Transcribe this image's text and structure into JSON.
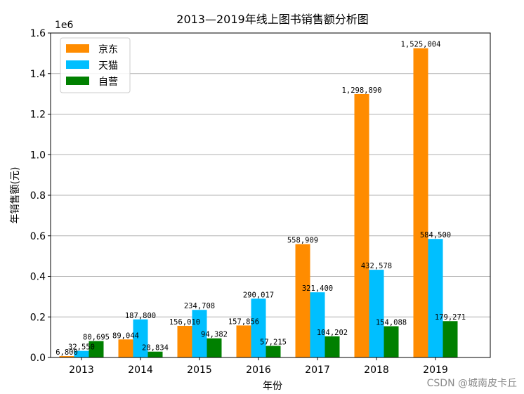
{
  "watermark": "CSDN @城南皮卡丘",
  "chart_data": {
    "type": "bar",
    "title": "2013—2019年线上图书销售额分析图",
    "xlabel": "年份",
    "ylabel": "年销售额(元)",
    "y_scale_label": "1e6",
    "ylim": [
      0,
      1600000
    ],
    "y_ticks": [
      0,
      200000,
      400000,
      600000,
      800000,
      1000000,
      1200000,
      1400000,
      1600000
    ],
    "y_tick_labels": [
      "0.0",
      "0.2",
      "0.4",
      "0.6",
      "0.8",
      "1.0",
      "1.2",
      "1.4",
      "1.6"
    ],
    "grid": "horizontal",
    "legend_position": "top-left",
    "categories": [
      "2013",
      "2014",
      "2015",
      "2016",
      "2017",
      "2018",
      "2019"
    ],
    "series": [
      {
        "name": "京东",
        "color": "#ff8c00",
        "values": [
          6800,
          89044,
          156010,
          157856,
          558909,
          1298890,
          1525004
        ],
        "labels": [
          "6,800",
          "89,044",
          "156,010",
          "157,856",
          "558,909",
          "1,298,890",
          "1,525,004"
        ]
      },
      {
        "name": "天猫",
        "color": "#00bfff",
        "values": [
          32550,
          187800,
          234708,
          290017,
          321400,
          432578,
          584500
        ],
        "labels": [
          "32,550",
          "187,800",
          "234,708",
          "290,017",
          "321,400",
          "432,578",
          "584,500"
        ]
      },
      {
        "name": "自营",
        "color": "#008000",
        "values": [
          80695,
          28834,
          94382,
          57215,
          104202,
          154088,
          179271
        ],
        "labels": [
          "80,695",
          "28,834",
          "94,382",
          "57,215",
          "104,202",
          "154,088",
          "179,271"
        ]
      }
    ]
  }
}
